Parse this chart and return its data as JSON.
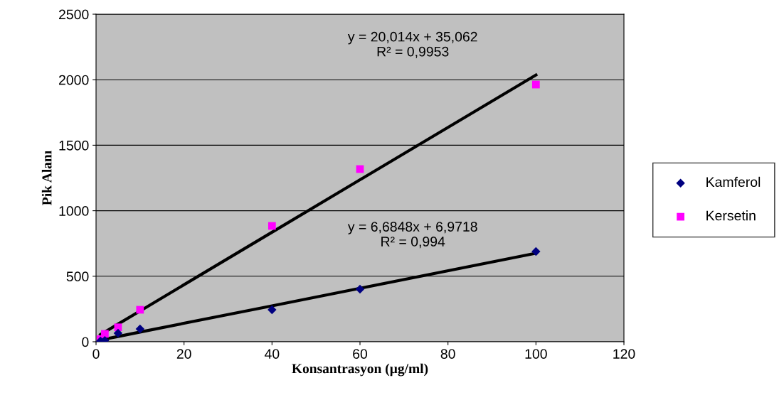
{
  "chart_data": {
    "type": "scatter",
    "xlabel": "Konsantrasyon (µg/ml)",
    "ylabel": "Pik Alanı",
    "x": [
      1,
      2,
      5,
      10,
      40,
      60,
      100
    ],
    "series": [
      {
        "name": "Kamferol",
        "color": "#000080",
        "marker": "diamond",
        "values": [
          5,
          10,
          65,
          98,
          244,
          401,
          689
        ]
      },
      {
        "name": "Kersetin",
        "color": "#ff00ff",
        "marker": "square",
        "values": [
          20,
          60,
          110,
          244,
          884,
          1318,
          1963
        ]
      },
      {
        "type": "line",
        "color": "#000000",
        "values": [
          55,
          75,
          135,
          235,
          836,
          1236,
          2036
        ]
      },
      {
        "type": "line",
        "color": "#000000",
        "values": [
          14,
          20,
          40,
          74,
          274,
          408,
          676
        ]
      }
    ],
    "annotations": [
      "y = 20,014x + 35,062\nR² = 0,9953",
      "y = 6,6848x + 6,9718\nR² = 0,994"
    ],
    "xlim": [
      0,
      120
    ],
    "xticks": [
      0,
      20,
      40,
      60,
      80,
      100,
      120
    ],
    "ylim": [
      0,
      2500
    ],
    "yticks": [
      0,
      500,
      1000,
      1500,
      2000,
      2500
    ],
    "grid": "y",
    "legend": "right"
  }
}
